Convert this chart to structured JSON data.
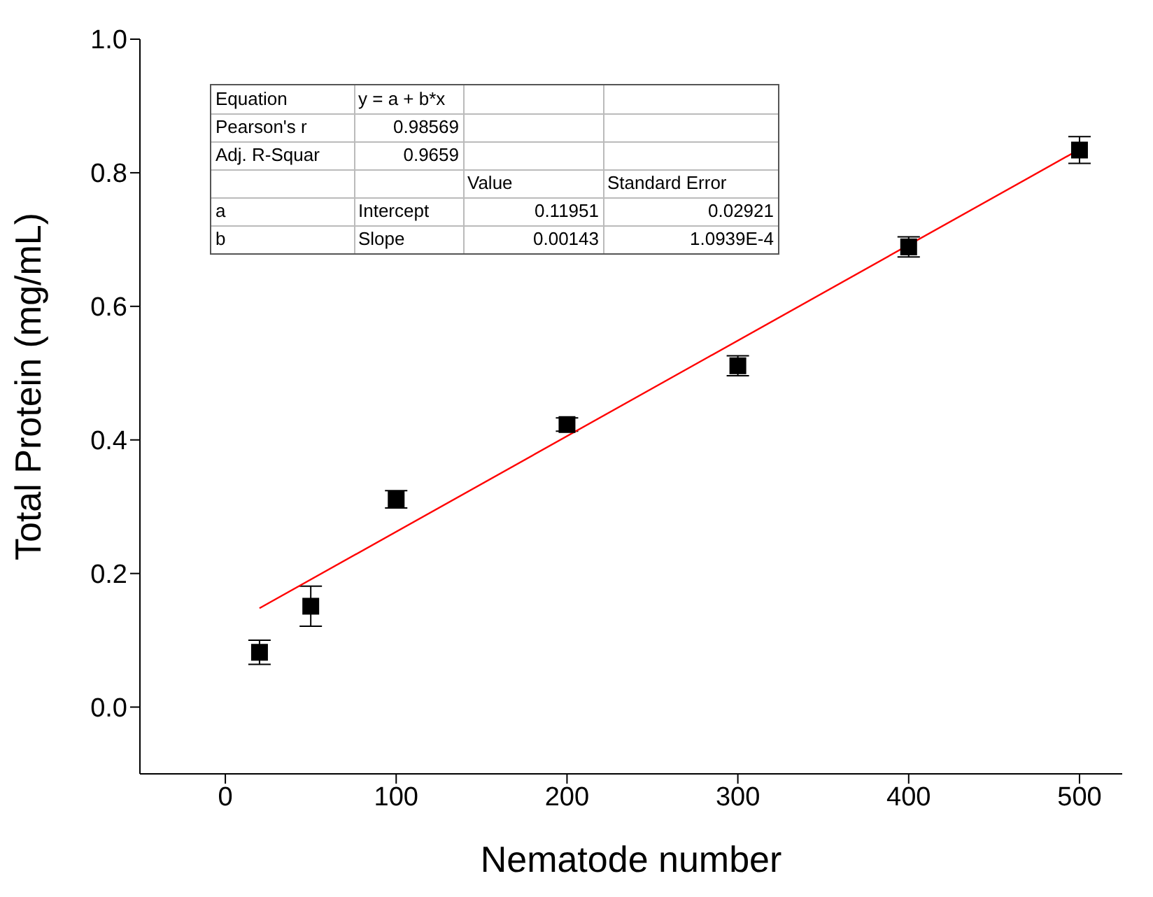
{
  "chart_data": {
    "type": "scatter",
    "xlabel": "Nematode number",
    "ylabel": "Total Protein (mg/mL)",
    "x": [
      20,
      50,
      100,
      200,
      300,
      400,
      500
    ],
    "series": [
      {
        "color": "#000000",
        "values": [
          0.082,
          0.151,
          0.311,
          0.423,
          0.511,
          0.689,
          0.834
        ],
        "errors": [
          0.018,
          0.03,
          0.013,
          0.01,
          0.015,
          0.015,
          0.02
        ],
        "marker": "square"
      },
      {
        "type": "line",
        "color": "#ff0000",
        "x": [
          20,
          500
        ],
        "values": [
          0.148,
          0.835
        ],
        "marker": "none"
      }
    ],
    "xlim": [
      -50,
      525
    ],
    "ylim": [
      -0.1,
      1.0
    ],
    "xticks": [
      0,
      100,
      200,
      300,
      400,
      500
    ],
    "yticks": [
      {
        "value": 0,
        "label": "0.0"
      },
      {
        "value": 0.2,
        "label": "0.2"
      },
      {
        "value": 0.4,
        "label": "0.4"
      },
      {
        "value": 0.6,
        "label": "0.6"
      },
      {
        "value": 0.8,
        "label": "0.8"
      },
      {
        "value": 1.0,
        "label": "1.0"
      }
    ],
    "grid": false,
    "legend": false,
    "annotations": [
      "Equation",
      "y = a + b*x",
      "Pearson's r",
      "0.98569",
      "Adj. R-Squar",
      "0.9659",
      "Value",
      "Standard Error",
      "a",
      "Intercept",
      "0.11951",
      "0.02921",
      "b",
      "Slope",
      "0.00143",
      "1.0939E-4"
    ]
  }
}
